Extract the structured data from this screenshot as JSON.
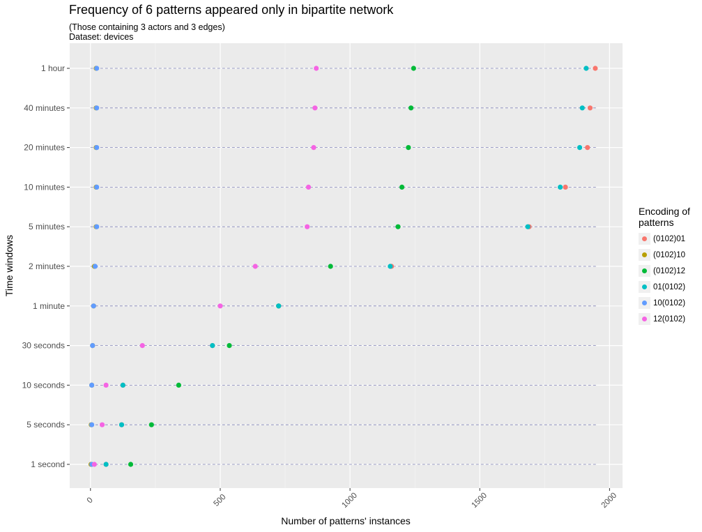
{
  "chart_data": {
    "type": "scatter",
    "title": "Frequency of 6 patterns appeared only in bipartite network",
    "subtitle_lines": [
      "(Those containing 3 actors and 3 edges)",
      "Dataset: devices"
    ],
    "xlabel": "Number of patterns' instances",
    "ylabel": "Time windows",
    "xlim": [
      -80,
      2050
    ],
    "x_ticks": [
      0,
      500,
      1000,
      1500,
      2000
    ],
    "x_tick_labels": [
      "0",
      "500",
      "1000",
      "1500",
      "2000"
    ],
    "categories": [
      "1 hour",
      "40 minutes",
      "20 minutes",
      "10 minutes",
      "5 minutes",
      "2 minutes",
      "1 minute",
      "30 seconds",
      "10 seconds",
      "5 seconds",
      "1 second"
    ],
    "grid": true,
    "legend": {
      "title_lines": [
        "Encoding of",
        "patterns"
      ],
      "position": "right"
    },
    "series": [
      {
        "name": "(0102)01",
        "color": "#F8766D",
        "values": [
          1945,
          1925,
          1915,
          1830,
          1690,
          1160,
          725,
          470,
          125,
          120,
          60
        ]
      },
      {
        "name": "(0102)10",
        "color": "#B79F00",
        "values": [
          22,
          22,
          22,
          22,
          22,
          15,
          12,
          8,
          5,
          3,
          2
        ]
      },
      {
        "name": "(0102)12",
        "color": "#00BA38",
        "values": [
          1245,
          1235,
          1225,
          1200,
          1185,
          925,
          725,
          535,
          340,
          235,
          155
        ]
      },
      {
        "name": "01(0102)",
        "color": "#00BFC4",
        "values": [
          1910,
          1895,
          1885,
          1810,
          1685,
          1155,
          725,
          470,
          125,
          120,
          60
        ]
      },
      {
        "name": "10(0102)",
        "color": "#619CFF",
        "values": [
          24,
          24,
          24,
          24,
          24,
          18,
          12,
          8,
          5,
          5,
          5
        ]
      },
      {
        "name": "12(0102)",
        "color": "#F564E3",
        "values": [
          870,
          865,
          860,
          840,
          835,
          635,
          500,
          200,
          60,
          45,
          15
        ]
      }
    ]
  }
}
